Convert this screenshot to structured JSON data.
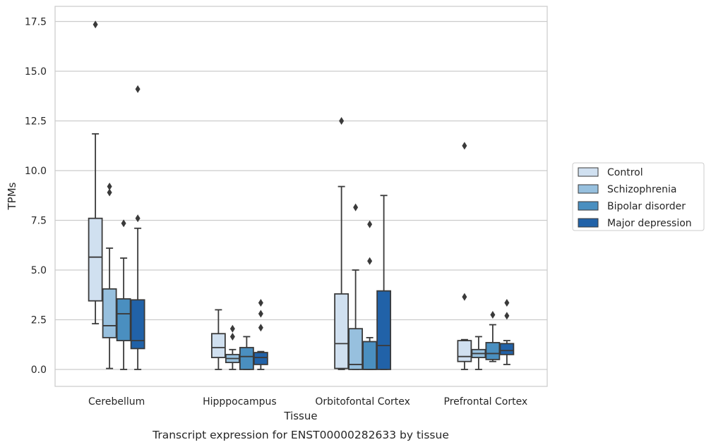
{
  "caption": "Transcript expression for ENST00000282633 by tissue",
  "chart_data": {
    "type": "box",
    "xlabel": "Tissue",
    "ylabel": "TPMs",
    "ylim": [
      -0.8,
      18.25
    ],
    "yticks": [
      "0.0",
      "2.5",
      "5.0",
      "7.5",
      "10.0",
      "12.5",
      "15.0",
      "17.5"
    ],
    "grid": "horizontal",
    "legend_position": "right",
    "categories": [
      "Cerebellum",
      "Hipppocampus",
      "Orbitofontal Cortex",
      "Prefrontal Cortex"
    ],
    "series": [
      {
        "name": "Control",
        "color": "#d0e0f0",
        "boxes": [
          {
            "whislo": 2.3,
            "q1": 3.45,
            "med": 5.65,
            "q3": 7.6,
            "whishi": 11.85,
            "fliers": [
              17.35
            ]
          },
          {
            "whislo": 0.0,
            "q1": 0.6,
            "med": 1.1,
            "q3": 1.8,
            "whishi": 3.0,
            "fliers": []
          },
          {
            "whislo": 0.0,
            "q1": 0.05,
            "med": 1.3,
            "q3": 3.8,
            "whishi": 9.2,
            "fliers": [
              12.5
            ]
          },
          {
            "whislo": 0.0,
            "q1": 0.4,
            "med": 0.65,
            "q3": 1.45,
            "whishi": 1.5,
            "fliers": [
              3.65,
              11.25
            ]
          }
        ]
      },
      {
        "name": "Schizophrenia",
        "color": "#97c0de",
        "boxes": [
          {
            "whislo": 0.05,
            "q1": 1.6,
            "med": 2.2,
            "q3": 4.05,
            "whishi": 6.1,
            "fliers": [
              8.9,
              9.2
            ]
          },
          {
            "whislo": 0.0,
            "q1": 0.35,
            "med": 0.55,
            "q3": 0.75,
            "whishi": 1.0,
            "fliers": [
              1.65,
              2.05
            ]
          },
          {
            "whislo": 0.0,
            "q1": 0.0,
            "med": 0.25,
            "q3": 2.05,
            "whishi": 5.0,
            "fliers": [
              8.15
            ]
          },
          {
            "whislo": 0.0,
            "q1": 0.6,
            "med": 0.8,
            "q3": 1.0,
            "whishi": 1.65,
            "fliers": []
          }
        ]
      },
      {
        "name": "Bipolar disorder",
        "color": "#4a8fc0",
        "boxes": [
          {
            "whislo": 0.0,
            "q1": 1.45,
            "med": 2.8,
            "q3": 3.55,
            "whishi": 5.6,
            "fliers": [
              7.35
            ]
          },
          {
            "whislo": 0.0,
            "q1": 0.0,
            "med": 0.65,
            "q3": 1.1,
            "whishi": 1.65,
            "fliers": []
          },
          {
            "whislo": 0.0,
            "q1": 0.0,
            "med": 0.0,
            "q3": 1.4,
            "whishi": 1.6,
            "fliers": [
              5.45,
              7.3
            ]
          },
          {
            "whislo": 0.4,
            "q1": 0.5,
            "med": 0.8,
            "q3": 1.35,
            "whishi": 2.25,
            "fliers": [
              2.75
            ]
          }
        ]
      },
      {
        "name": "Major depression",
        "color": "#2162a8",
        "boxes": [
          {
            "whislo": 0.0,
            "q1": 1.05,
            "med": 1.45,
            "q3": 3.5,
            "whishi": 7.1,
            "fliers": [
              7.6,
              14.1
            ]
          },
          {
            "whislo": 0.0,
            "q1": 0.25,
            "med": 0.6,
            "q3": 0.85,
            "whishi": 0.9,
            "fliers": [
              2.1,
              2.8,
              3.35
            ]
          },
          {
            "whislo": 0.0,
            "q1": 0.0,
            "med": 1.2,
            "q3": 3.95,
            "whishi": 8.75,
            "fliers": []
          },
          {
            "whislo": 0.25,
            "q1": 0.75,
            "med": 0.95,
            "q3": 1.3,
            "whishi": 1.45,
            "fliers": [
              2.7,
              3.35
            ]
          }
        ]
      }
    ]
  }
}
